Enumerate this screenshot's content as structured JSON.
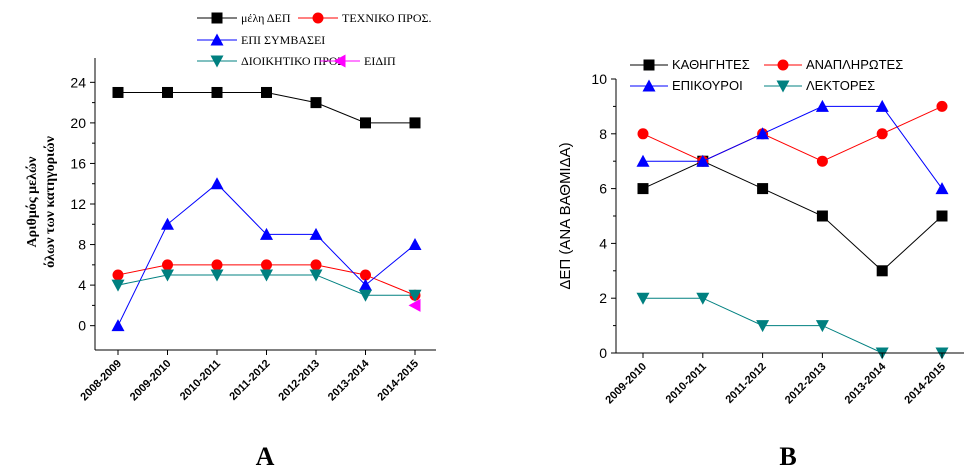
{
  "chart_data": [
    {
      "type": "line",
      "panel_label": "A",
      "ylabel_lines": [
        "Αριθμός μελών",
        "όλων των κατηγοριών"
      ],
      "xlabel": "",
      "categories": [
        "2008-2009",
        "2009-2010",
        "2010-2011",
        "2011-2012",
        "2012-2013",
        "2013-2014",
        "2014-2015"
      ],
      "yticks": [
        0,
        4,
        8,
        12,
        16,
        20,
        24
      ],
      "ylim": [
        -2.4,
        26.4
      ],
      "legend_position": "top",
      "series": [
        {
          "name": "μέλη ΔΕΠ",
          "color": "#000000",
          "marker": "square",
          "values": [
            23,
            23,
            23,
            23,
            22,
            20,
            20
          ]
        },
        {
          "name": "ΤΕΧΝΙΚΟ ΠΡΟΣ.",
          "color": "#ff0000",
          "marker": "circle",
          "values": [
            5,
            6,
            6,
            6,
            6,
            5,
            3
          ]
        },
        {
          "name": "ΕΠΙ ΣΥΜΒΑΣΕΙ",
          "color": "#0000ff",
          "marker": "triangle-up",
          "values": [
            0,
            10,
            14,
            9,
            9,
            4,
            8
          ]
        },
        {
          "name": "ΔΙΟΙΚΗΤΙΚΟ ΠΡΟΣ",
          "color": "#008080",
          "marker": "triangle-down",
          "values": [
            4,
            5,
            5,
            5,
            5,
            3,
            3
          ]
        },
        {
          "name": "ΕΙΔΙΠ",
          "color": "#ff00ff",
          "marker": "triangle-left",
          "values": [
            null,
            null,
            null,
            null,
            null,
            null,
            2
          ]
        }
      ]
    },
    {
      "type": "line",
      "panel_label": "B",
      "ylabel_lines": [
        "ΔΕΠ  (ΑΝΑ  ΒΑΘΜΙΔΑ)"
      ],
      "xlabel": "",
      "categories": [
        "2009-2010",
        "2010-2011",
        "2011-2012",
        "2012-2013",
        "2013-2014",
        "2014-2015"
      ],
      "yticks": [
        0,
        2,
        4,
        6,
        8,
        10
      ],
      "ylim": [
        0,
        10
      ],
      "legend_position": "top",
      "series": [
        {
          "name": "ΚΑΘΗΓΗΤΕΣ",
          "color": "#000000",
          "marker": "square",
          "values": [
            6,
            7,
            6,
            5,
            3,
            5
          ]
        },
        {
          "name": "ΑΝΑΠΛΗΡΩΤΕΣ",
          "color": "#ff0000",
          "marker": "circle",
          "values": [
            8,
            7,
            8,
            7,
            8,
            9
          ]
        },
        {
          "name": "ΕΠΙΚΟΥΡΟΙ",
          "color": "#0000ff",
          "marker": "triangle-up",
          "values": [
            7,
            7,
            8,
            9,
            9,
            6
          ]
        },
        {
          "name": "ΛΕΚΤΟΡΕΣ",
          "color": "#008080",
          "marker": "triangle-down",
          "values": [
            2,
            2,
            1,
            1,
            0,
            0
          ]
        }
      ]
    }
  ]
}
